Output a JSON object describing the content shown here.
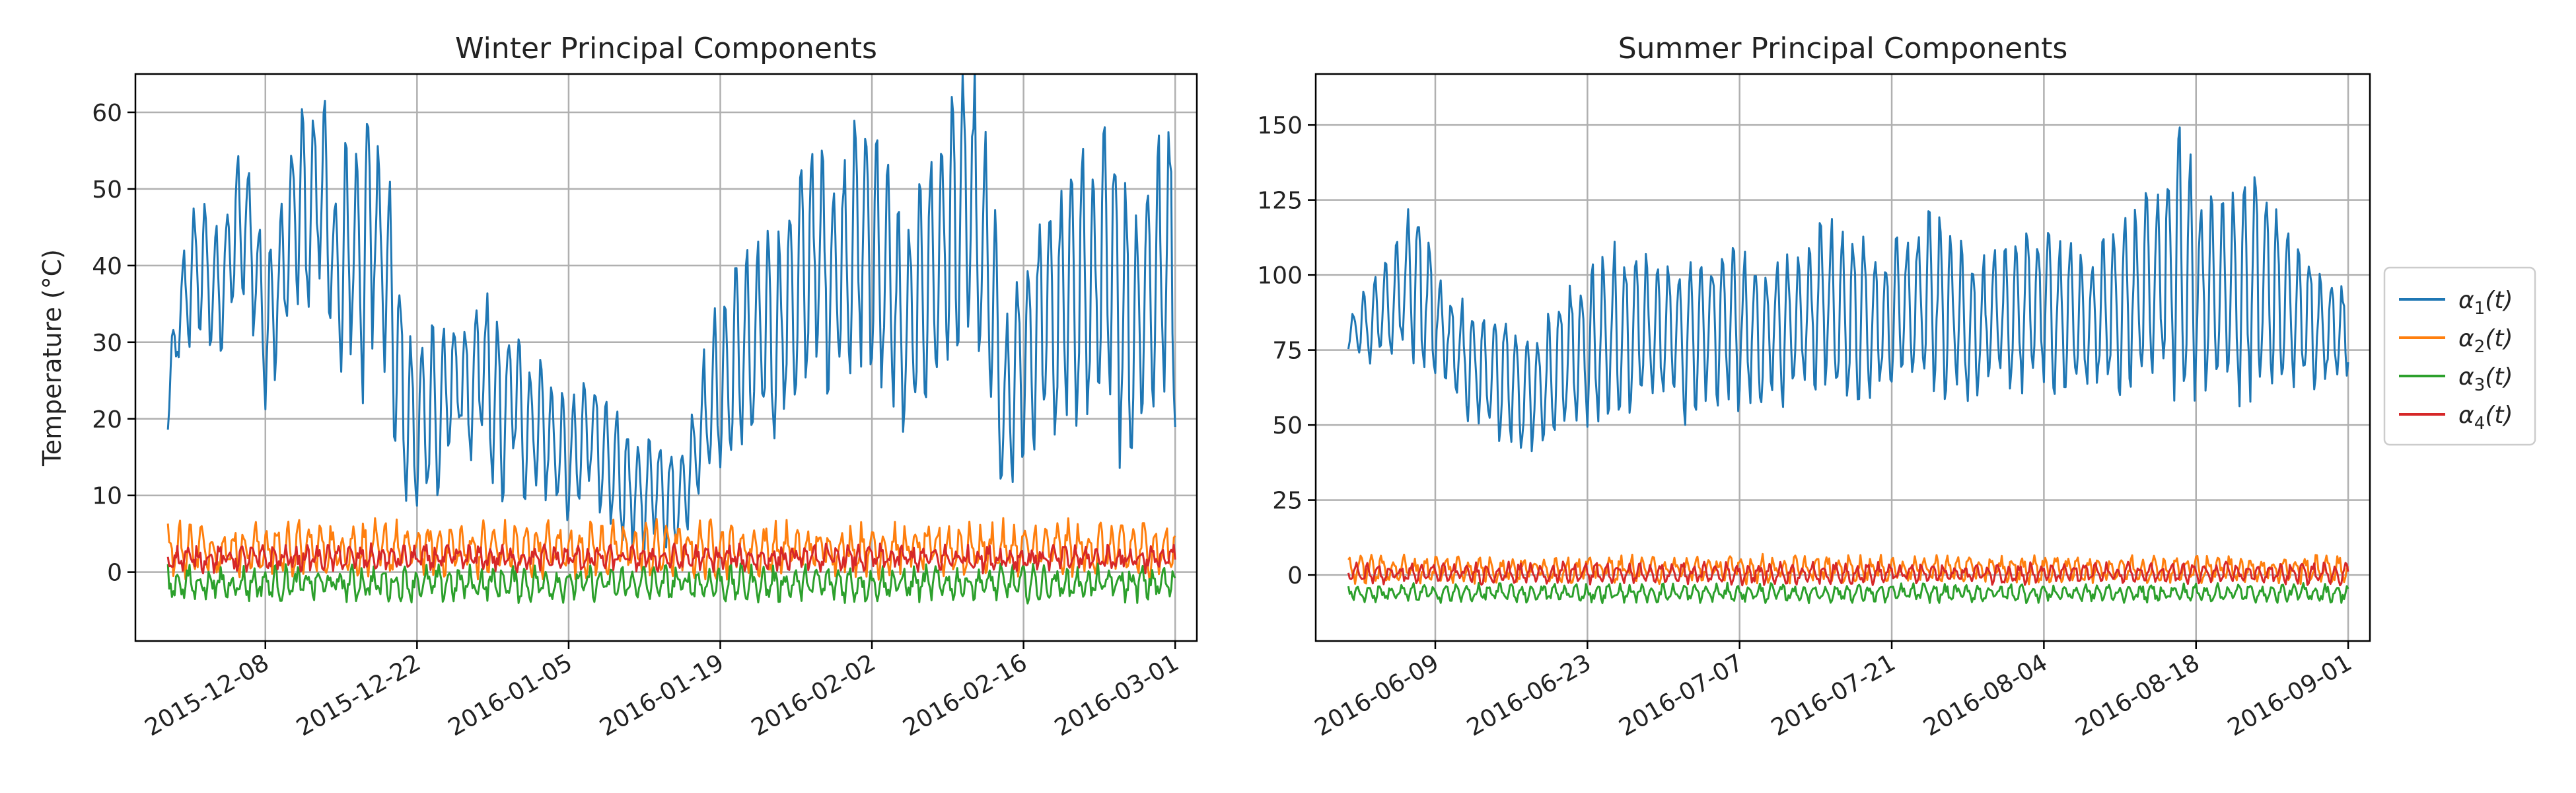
{
  "chart_data": [
    {
      "type": "line",
      "title": "Winter Principal Components",
      "xlabel": "",
      "ylabel": "Temperature ($^\\circ C$)",
      "ylabel_display": "Temperature (°C)",
      "x_range": [
        "2015-11-29",
        "2016-03-01"
      ],
      "xlim": [
        "2015-11-26",
        "2016-03-03"
      ],
      "ylim": [
        -9,
        65
      ],
      "x_ticks": [
        "2015-12-08",
        "2015-12-22",
        "2016-01-05",
        "2016-01-19",
        "2016-02-02",
        "2016-02-16",
        "2016-03-01"
      ],
      "y_ticks": [
        0,
        10,
        20,
        30,
        40,
        50,
        60
      ],
      "grid": true,
      "series": [
        {
          "name": "α1(t)",
          "color": "#1f77b4",
          "sampling": "8 points per day",
          "daily_mean": [
            22,
            33,
            38,
            40,
            38,
            36,
            44,
            46,
            42,
            30,
            36,
            42,
            48,
            46,
            52,
            42,
            38,
            44,
            40,
            46,
            42,
            30,
            20,
            18,
            22,
            20,
            24,
            26,
            22,
            28,
            22,
            20,
            24,
            18,
            20,
            18,
            16,
            14,
            16,
            20,
            14,
            14,
            12,
            10,
            10,
            12,
            10,
            9,
            12,
            18,
            22,
            24,
            26,
            30,
            28,
            32,
            30,
            34,
            36,
            40,
            42,
            38,
            40,
            42,
            44,
            42,
            40,
            36,
            30,
            34,
            38,
            40,
            44,
            46,
            48,
            42,
            38,
            20,
            24,
            28,
            30,
            34,
            32,
            36,
            38,
            36,
            38,
            40,
            36,
            30,
            36,
            38,
            40,
            42,
            38,
            42,
            40
          ],
          "daily_amplitude": [
            4,
            6,
            8,
            8,
            7,
            7,
            9,
            10,
            8,
            10,
            8,
            10,
            12,
            10,
            14,
            10,
            14,
            12,
            16,
            10,
            14,
            12,
            10,
            9,
            12,
            10,
            8,
            8,
            9,
            10,
            10,
            9,
            8,
            8,
            8,
            7,
            7,
            7,
            7,
            8,
            7,
            7,
            7,
            6,
            6,
            6,
            6,
            6,
            6,
            8,
            10,
            10,
            11,
            12,
            12,
            13,
            12,
            13,
            14,
            15,
            14,
            12,
            13,
            14,
            15,
            16,
            14,
            13,
            12,
            13,
            14,
            15,
            16,
            17,
            18,
            15,
            14,
            10,
            11,
            12,
            13,
            15,
            14,
            17,
            18,
            16,
            17,
            20,
            16,
            14,
            15,
            16,
            18,
            20,
            16,
            20,
            18
          ]
        },
        {
          "name": "α2(t)",
          "color": "#ff7f0e",
          "sampling": "8 points per day",
          "mean": 3.0,
          "daily_amplitude": 2.5,
          "noise": 1.6
        },
        {
          "name": "α3(t)",
          "color": "#2ca02c",
          "sampling": "8 points per day",
          "mean": -1.5,
          "daily_amplitude": 1.5,
          "noise": 1.2
        },
        {
          "name": "α4(t)",
          "color": "#d62728",
          "sampling": "8 points per day",
          "mean": 1.8,
          "daily_amplitude": 1.0,
          "noise": 1.0
        }
      ]
    },
    {
      "type": "line",
      "title": "Summer Principal Components",
      "xlabel": "",
      "ylabel": "",
      "x_range": [
        "2016-06-01",
        "2016-09-01"
      ],
      "xlim": [
        "2016-05-29",
        "2016-09-03"
      ],
      "ylim": [
        -22,
        167
      ],
      "x_ticks": [
        "2016-06-09",
        "2016-06-23",
        "2016-07-07",
        "2016-07-21",
        "2016-08-04",
        "2016-08-18",
        "2016-09-01"
      ],
      "y_ticks": [
        0,
        25,
        50,
        75,
        100,
        125,
        150
      ],
      "grid": true,
      "series": [
        {
          "name": "α1(t)",
          "color": "#1f77b4",
          "sampling": "8 points per day",
          "daily_mean": [
            80,
            82,
            85,
            88,
            90,
            95,
            98,
            92,
            86,
            80,
            76,
            72,
            70,
            68,
            66,
            64,
            62,
            60,
            62,
            68,
            72,
            74,
            76,
            78,
            80,
            82,
            82,
            84,
            82,
            80,
            80,
            78,
            80,
            82,
            84,
            84,
            82,
            82,
            80,
            80,
            82,
            84,
            86,
            88,
            90,
            88,
            86,
            86,
            84,
            84,
            86,
            88,
            90,
            92,
            90,
            88,
            86,
            84,
            82,
            84,
            86,
            88,
            88,
            90,
            90,
            88,
            86,
            84,
            84,
            86,
            88,
            90,
            92,
            94,
            96,
            100,
            104,
            100,
            96,
            94,
            92,
            94,
            96,
            98,
            96,
            92,
            90,
            88,
            86,
            84,
            82,
            82,
            80
          ],
          "daily_amplitude": [
            6,
            10,
            14,
            16,
            18,
            22,
            26,
            20,
            16,
            14,
            16,
            18,
            18,
            20,
            20,
            18,
            18,
            16,
            20,
            22,
            22,
            22,
            24,
            24,
            26,
            24,
            22,
            22,
            22,
            22,
            22,
            24,
            22,
            22,
            24,
            24,
            24,
            22,
            22,
            20,
            22,
            22,
            24,
            26,
            28,
            26,
            24,
            24,
            22,
            20,
            22,
            22,
            24,
            26,
            26,
            24,
            24,
            22,
            20,
            20,
            22,
            22,
            24,
            24,
            24,
            24,
            22,
            22,
            20,
            22,
            24,
            26,
            26,
            28,
            28,
            36,
            40,
            36,
            32,
            30,
            30,
            32,
            34,
            36,
            32,
            28,
            26,
            22,
            20,
            18,
            16,
            14,
            10
          ]
        },
        {
          "name": "α2(t)",
          "color": "#ff7f0e",
          "sampling": "8 points per day",
          "mean": 2.0,
          "daily_amplitude": 3.0,
          "noise": 2.2
        },
        {
          "name": "α3(t)",
          "color": "#2ca02c",
          "sampling": "8 points per day",
          "mean": -6.0,
          "daily_amplitude": 2.0,
          "noise": 1.5
        },
        {
          "name": "α4(t)",
          "color": "#d62728",
          "sampling": "8 points per day",
          "mean": 0.5,
          "daily_amplitude": 2.5,
          "noise": 1.5
        }
      ]
    }
  ],
  "legend": {
    "placement": "center-right",
    "entries": [
      {
        "label": "α1(t)",
        "base": "α",
        "sub": "1",
        "suffix": "(t)",
        "color": "#1f77b4"
      },
      {
        "label": "α2(t)",
        "base": "α",
        "sub": "2",
        "suffix": "(t)",
        "color": "#ff7f0e"
      },
      {
        "label": "α3(t)",
        "base": "α",
        "sub": "3",
        "suffix": "(t)",
        "color": "#2ca02c"
      },
      {
        "label": "α4(t)",
        "base": "α",
        "sub": "4",
        "suffix": "(t)",
        "color": "#d62728"
      }
    ]
  }
}
